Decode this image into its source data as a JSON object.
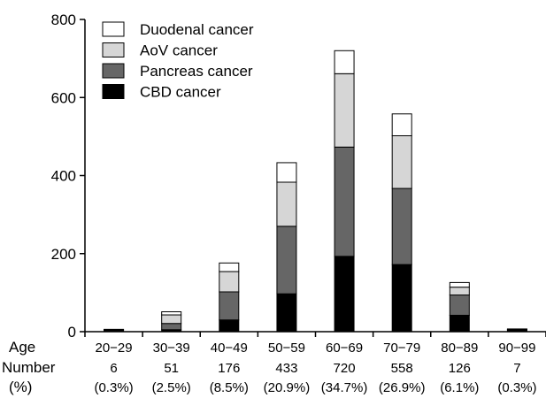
{
  "chart_data": {
    "type": "bar",
    "stacked": true,
    "title": "",
    "xlabel": "",
    "ylabel": "",
    "ylim": [
      0,
      800
    ],
    "yticks": [
      0,
      200,
      400,
      600,
      800
    ],
    "grid": false,
    "legend": "top-left",
    "categories": [
      "20−29",
      "30−39",
      "40−49",
      "50−59",
      "60−69",
      "70−79",
      "80−89",
      "90−99"
    ],
    "series": [
      {
        "name": "CBD cancer",
        "color": "#000000",
        "values": [
          3,
          5,
          30,
          97,
          193,
          172,
          42,
          4
        ]
      },
      {
        "name": "Pancreas cancer",
        "color": "#666666",
        "values": [
          2,
          16,
          72,
          173,
          280,
          195,
          52,
          2
        ]
      },
      {
        "name": "AoV cancer",
        "color": "#d6d6d6",
        "values": [
          1,
          22,
          52,
          113,
          188,
          135,
          20,
          1
        ]
      },
      {
        "name": "Duodenal cancer",
        "color": "#ffffff",
        "values": [
          0,
          8,
          22,
          50,
          59,
          56,
          12,
          0
        ]
      }
    ],
    "legend_order": [
      "Duodenal cancer",
      "AoV cancer",
      "Pancreas cancer",
      "CBD cancer"
    ],
    "table": {
      "age_label": "Age",
      "number_label": "Number",
      "percent_label": "(%)",
      "numbers": [
        "6",
        "51",
        "176",
        "433",
        "720",
        "558",
        "126",
        "7"
      ],
      "percents": [
        "(0.3%)",
        "(2.5%)",
        "(8.5%)",
        "(20.9%)",
        "(34.7%)",
        "(26.9%)",
        "(6.1%)",
        "(0.3%)"
      ]
    }
  }
}
